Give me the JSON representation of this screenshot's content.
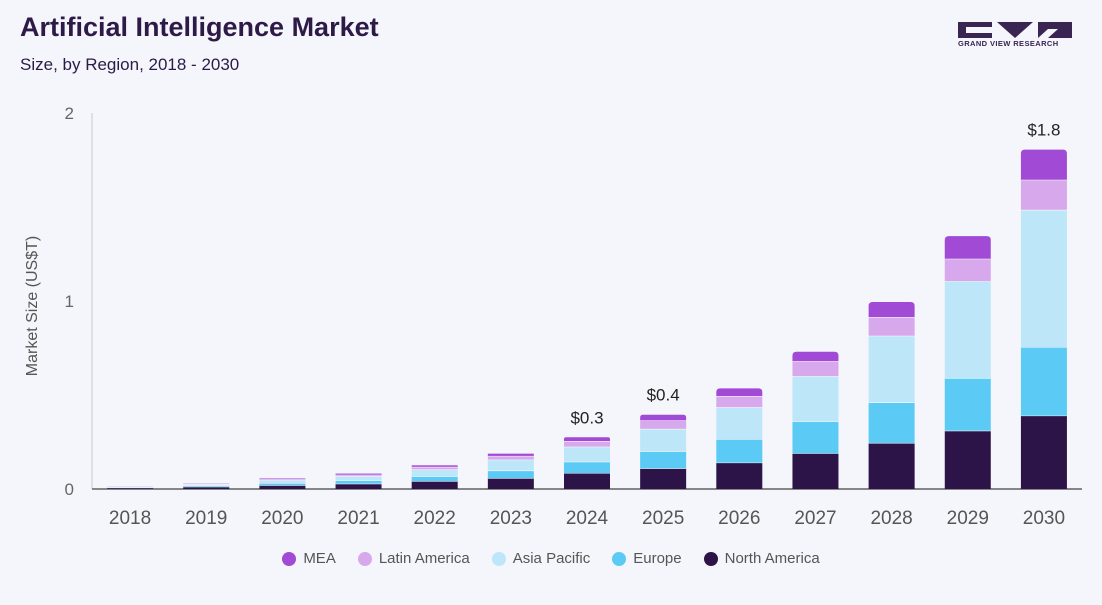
{
  "header": {
    "title": "Artificial Intelligence Market",
    "subtitle": "Size, by Region, 2018 - 2030"
  },
  "logo": {
    "text": "GRAND VIEW RESEARCH",
    "color": "#3a2452"
  },
  "chart_data": {
    "type": "bar",
    "stacked": true,
    "title": "Artificial Intelligence Market",
    "subtitle": "Size, by Region, 2018 - 2030",
    "xlabel": "",
    "ylabel": "Market Size (US$T)",
    "ylim": [
      0,
      2
    ],
    "yticks": [
      "0",
      "1",
      "2"
    ],
    "grid": false,
    "legend_position": "bottom",
    "categories": [
      "2018",
      "2019",
      "2020",
      "2021",
      "2022",
      "2023",
      "2024",
      "2025",
      "2026",
      "2027",
      "2028",
      "2029",
      "2030"
    ],
    "series": [
      {
        "name": "North America",
        "color": "#2d1448",
        "values": [
          0.007,
          0.012,
          0.02,
          0.028,
          0.042,
          0.058,
          0.085,
          0.11,
          0.14,
          0.19,
          0.245,
          0.31,
          0.39
        ]
      },
      {
        "name": "Europe",
        "color": "#5bcaf4",
        "values": [
          0.003,
          0.006,
          0.012,
          0.018,
          0.026,
          0.04,
          0.06,
          0.09,
          0.125,
          0.17,
          0.215,
          0.28,
          0.365
        ]
      },
      {
        "name": "Asia Pacific",
        "color": "#bde7f8",
        "values": [
          0.003,
          0.006,
          0.014,
          0.022,
          0.036,
          0.058,
          0.08,
          0.12,
          0.17,
          0.24,
          0.355,
          0.515,
          0.73
        ]
      },
      {
        "name": "Latin America",
        "color": "#d7a9ec",
        "values": [
          0.001,
          0.002,
          0.006,
          0.008,
          0.014,
          0.02,
          0.03,
          0.045,
          0.06,
          0.08,
          0.1,
          0.12,
          0.16
        ]
      },
      {
        "name": "MEA",
        "color": "#a04ad6",
        "values": [
          0.001,
          0.002,
          0.004,
          0.006,
          0.008,
          0.012,
          0.02,
          0.03,
          0.04,
          0.05,
          0.08,
          0.12,
          0.16
        ]
      }
    ],
    "annotations": [
      {
        "category": "2024",
        "label": "$0.3"
      },
      {
        "category": "2025",
        "label": "$0.4"
      },
      {
        "category": "2030",
        "label": "$1.8"
      }
    ]
  }
}
